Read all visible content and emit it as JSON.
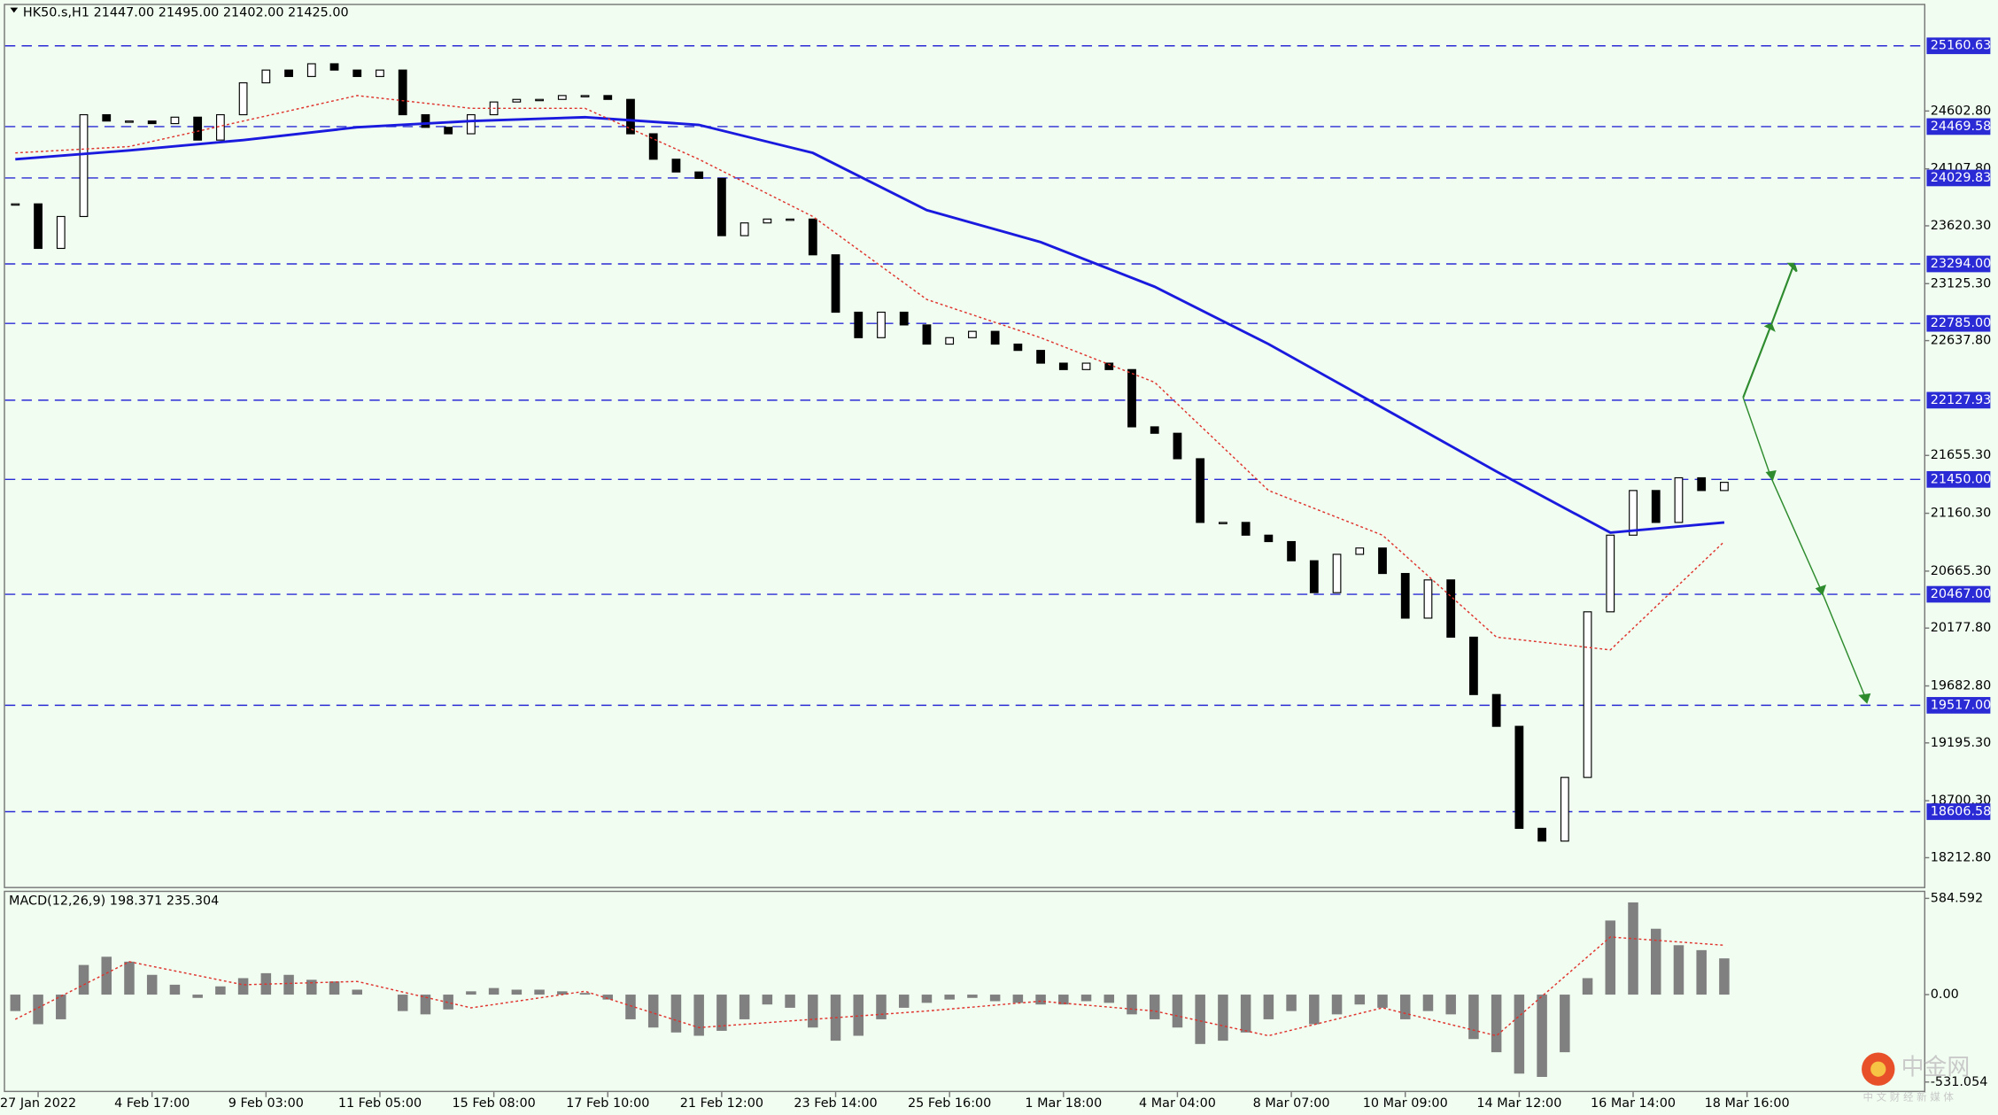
{
  "chart_data": [
    {
      "type": "candlestick",
      "title": "HK50.s,H1  21447.00 21495.00 21402.00 21425.00",
      "close": [
        23808,
        23427,
        23700,
        24571,
        24517,
        24517,
        24495,
        24550,
        24354,
        24571,
        24844,
        24953,
        24898,
        25007,
        24953,
        24898,
        24953,
        24571,
        24463,
        24408,
        24571,
        24680,
        24702,
        24702,
        24735,
        24735,
        24702,
        24408,
        24190,
        24081,
        24026,
        23536,
        23645,
        23678,
        23678,
        23372,
        22881,
        22663,
        22881,
        22772,
        22608,
        22663,
        22717,
        22608,
        22554,
        22445,
        22390,
        22445,
        22390,
        21900,
        21845,
        21627,
        21082,
        21082,
        20973,
        20918,
        20754,
        20481,
        20809,
        20863,
        20645,
        20263,
        20590,
        20100,
        19609,
        19337,
        18464,
        18355,
        18900,
        20317,
        20973,
        21355,
        21082,
        21464,
        21355,
        21425
      ],
      "color": "#000000",
      "ylim": [
        17952,
        25520
      ],
      "yticks": [
        {
          "value": 24602.8,
          "label": "24602.80"
        },
        {
          "value": 24107.8,
          "label": "24107.80"
        },
        {
          "value": 23620.3,
          "label": "23620.30"
        },
        {
          "value": 23125.3,
          "label": "23125.30"
        },
        {
          "value": 22637.8,
          "label": "22637.80"
        },
        {
          "value": 21655.3,
          "label": "21655.30"
        },
        {
          "value": 21160.3,
          "label": "21160.30"
        },
        {
          "value": 20665.3,
          "label": "20665.30"
        },
        {
          "value": 20177.8,
          "label": "20177.80"
        },
        {
          "value": 19682.8,
          "label": "19682.80"
        },
        {
          "value": 19195.3,
          "label": "19195.30"
        },
        {
          "value": 18700.3,
          "label": "18700.30"
        },
        {
          "value": 18212.8,
          "label": "18212.80"
        }
      ],
      "xlim": [
        -0.45,
        83.77
      ],
      "xticks": [
        {
          "value": 1,
          "label": "27 Jan 2022"
        },
        {
          "value": 6,
          "label": "4 Feb 17:00"
        },
        {
          "value": 11,
          "label": "9 Feb 03:00"
        },
        {
          "value": 16,
          "label": "11 Feb 05:00"
        },
        {
          "value": 21,
          "label": "15 Feb 08:00"
        },
        {
          "value": 26,
          "label": "17 Feb 10:00"
        },
        {
          "value": 31,
          "label": "21 Feb 12:00"
        },
        {
          "value": 36,
          "label": "23 Feb 14:00"
        },
        {
          "value": 41,
          "label": "25 Feb 16:00"
        },
        {
          "value": 46,
          "label": "1 Mar 18:00"
        },
        {
          "value": 51,
          "label": "4 Mar 04:00"
        },
        {
          "value": 56,
          "label": "8 Mar 07:00"
        },
        {
          "value": 61,
          "label": "10 Mar 09:00"
        },
        {
          "value": 66,
          "label": "14 Mar 12:00"
        },
        {
          "value": 71,
          "label": "16 Mar 14:00"
        },
        {
          "value": 76,
          "label": "18 Mar 16:00"
        }
      ],
      "levels": [
        25160.63,
        24469.58,
        24029.83,
        {
          "value": 23294,
          "label": "23294.00"
        },
        {
          "value": 22785,
          "label": "22785.00"
        },
        22127.93,
        {
          "value": 21450,
          "label": "21450.00"
        },
        {
          "value": 20467,
          "label": "20467.00"
        },
        {
          "value": 19517,
          "label": "19517.00"
        },
        18606.58
      ],
      "level_color": "#2b2bd6",
      "series": [
        {
          "color": "#1a1adf",
          "x": [
            0,
            5,
            10,
            15,
            20,
            25,
            30,
            35,
            40,
            45,
            50,
            55,
            60,
            65,
            70,
            75
          ],
          "values": [
            24190,
            24266,
            24354,
            24463,
            24517,
            24550,
            24484,
            24244,
            23754,
            23481,
            23099,
            22608,
            22063,
            21518,
            20994,
            21082
          ]
        },
        {
          "color": "#e0322c",
          "x": [
            0,
            5,
            10,
            15,
            20,
            25,
            30,
            35,
            40,
            45,
            50,
            55,
            60,
            65,
            70,
            75
          ],
          "values": [
            24244,
            24299,
            24517,
            24735,
            24626,
            24626,
            24190,
            23700,
            22990,
            22663,
            22281,
            21355,
            20973,
            20100,
            19991,
            20918
          ]
        }
      ]
    },
    {
      "type": "bar",
      "title": "MACD(12,26,9) 198.371 235.304",
      "values": [
        -100,
        -180,
        -150,
        180,
        230,
        200,
        120,
        60,
        -20,
        50,
        100,
        130,
        120,
        90,
        80,
        30,
        0,
        -100,
        -120,
        -90,
        20,
        40,
        30,
        30,
        20,
        10,
        -30,
        -150,
        -200,
        -230,
        -250,
        -220,
        -150,
        -60,
        -80,
        -200,
        -280,
        -250,
        -150,
        -80,
        -50,
        -30,
        -20,
        -40,
        -50,
        -60,
        -60,
        -40,
        -50,
        -120,
        -150,
        -200,
        -300,
        -280,
        -230,
        -150,
        -100,
        -180,
        -120,
        -60,
        -80,
        -150,
        -100,
        -120,
        -270,
        -350,
        -480,
        -500,
        -350,
        100,
        450,
        560,
        400,
        300,
        270,
        220
      ],
      "color": "#808080",
      "ylim": [
        -592,
        631
      ],
      "yticks": [
        584.592,
        {
          "value": 0,
          "label": "0.00"
        },
        -531.054
      ],
      "xlim": [
        -0.45,
        83.77
      ],
      "series": [
        {
          "color": "#e0322c",
          "x": [
            0,
            5,
            10,
            15,
            20,
            25,
            30,
            35,
            40,
            45,
            50,
            55,
            60,
            65,
            70,
            75
          ],
          "values": [
            -150,
            200,
            60,
            80,
            -80,
            20,
            -200,
            -150,
            -100,
            -40,
            -100,
            -250,
            -80,
            -250,
            350,
            300
          ]
        }
      ]
    }
  ],
  "watermark": {
    "title": "中金网",
    "subtitle": "中 文 财 经 新 媒 体"
  }
}
